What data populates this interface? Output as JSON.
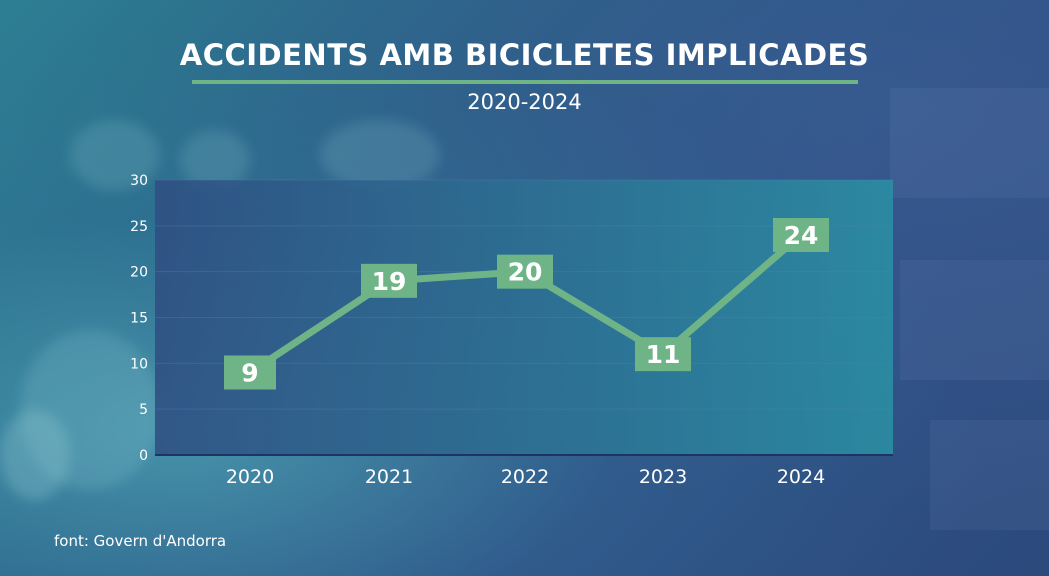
{
  "chart_data": {
    "type": "line",
    "title": "ACCIDENTS AMB BICICLETES IMPLICADES",
    "subtitle": "2020-2024",
    "xlabel": "",
    "ylabel": "",
    "categories": [
      "2020",
      "2021",
      "2022",
      "2023",
      "2024"
    ],
    "values": [
      9,
      19,
      20,
      11,
      24
    ],
    "data_labels": [
      "9",
      "19",
      "20",
      "11",
      "24"
    ],
    "ylim": [
      0,
      30
    ],
    "yticks": [
      0,
      5,
      10,
      15,
      20,
      25,
      30
    ],
    "ytick_labels": [
      "0",
      "5",
      "10",
      "15",
      "20",
      "25",
      "30"
    ],
    "grid": true,
    "legend": "none",
    "colors": {
      "line": "#6fb487",
      "label_box": "#6fb487",
      "plot_bg_start": "#2f4f82",
      "plot_bg_end": "#2a8fa3",
      "grid": "#5a7fb0"
    }
  },
  "footer": {
    "source": "font: Govern d'Andorra"
  }
}
